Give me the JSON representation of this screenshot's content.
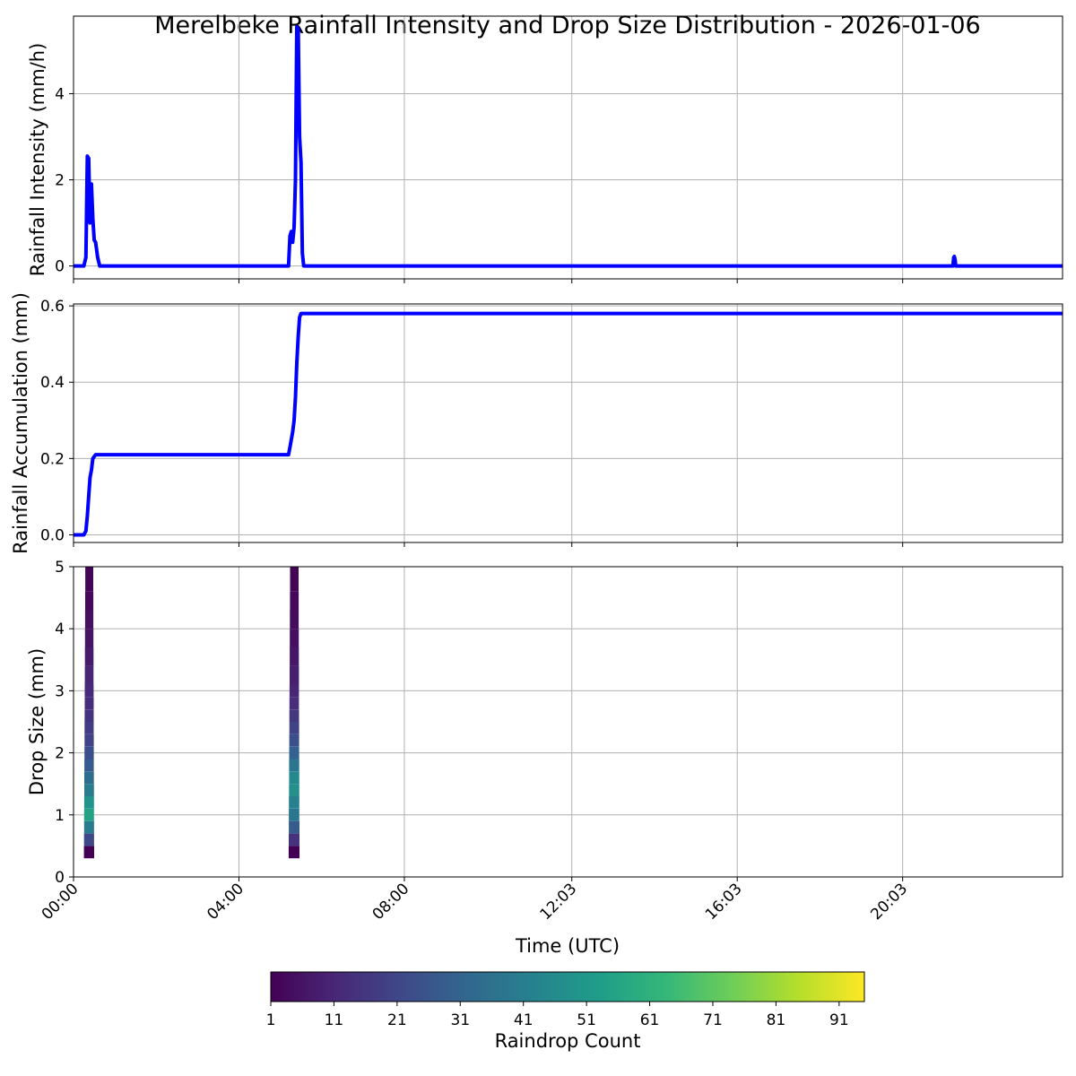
{
  "title": "Merelbeke Rainfall Intensity and Drop Size Distribution - 2026-01-06",
  "colors": {
    "line": "#0000ff",
    "grid": "#b0b0b0",
    "axis": "#000000",
    "viridis": [
      "#440154",
      "#482878",
      "#3e4989",
      "#31688e",
      "#26828e",
      "#1f9e89",
      "#35b779",
      "#6ece58",
      "#b5de2b",
      "#fde725"
    ]
  },
  "chart_data": [
    {
      "id": "intensity",
      "type": "line",
      "ylabel": "Rainfall Intensity (mm/h)",
      "xlim": [
        "00:00",
        "23:55"
      ],
      "ylim": [
        -0.3,
        5.8
      ],
      "yticks": [
        0,
        2,
        4
      ],
      "grid": true,
      "series": [
        {
          "x": [
            "00:00",
            "00:15",
            "00:18",
            "00:20",
            "00:22",
            "00:24",
            "00:26",
            "00:28",
            "00:30",
            "00:32",
            "00:35",
            "00:38",
            "00:42",
            "05:00",
            "05:12",
            "05:14",
            "05:16",
            "05:18",
            "05:20",
            "05:22",
            "05:24",
            "05:26",
            "05:28",
            "05:30",
            "05:32",
            "05:34",
            "05:38",
            "21:15",
            "21:16",
            "21:17",
            "21:18",
            "21:19",
            "21:20",
            "23:55"
          ],
          "y": [
            0,
            0,
            0.2,
            2.55,
            2.5,
            1.0,
            1.9,
            1.1,
            0.6,
            0.55,
            0.2,
            0,
            0,
            0,
            0,
            0.7,
            0.8,
            0.55,
            0.9,
            2.0,
            5.55,
            5.5,
            3.0,
            2.4,
            0.3,
            0,
            0,
            0,
            0,
            0.2,
            0.22,
            0.15,
            0,
            0
          ]
        }
      ]
    },
    {
      "id": "accumulation",
      "type": "line",
      "ylabel": "Rainfall Accumulation (mm)",
      "xlim": [
        "00:00",
        "23:55"
      ],
      "ylim": [
        -0.02,
        0.605
      ],
      "yticks": [
        0.0,
        0.2,
        0.4,
        0.6
      ],
      "ytick_labels": [
        "0.0",
        "0.2",
        "0.4",
        "0.6"
      ],
      "grid": true,
      "series": [
        {
          "x": [
            "00:00",
            "00:15",
            "00:18",
            "00:20",
            "00:22",
            "00:24",
            "00:26",
            "00:28",
            "00:32",
            "05:12",
            "05:14",
            "05:16",
            "05:18",
            "05:20",
            "05:22",
            "05:24",
            "05:26",
            "05:28",
            "05:30",
            "23:55"
          ],
          "y": [
            0,
            0,
            0.01,
            0.05,
            0.1,
            0.15,
            0.17,
            0.2,
            0.21,
            0.21,
            0.23,
            0.25,
            0.27,
            0.3,
            0.36,
            0.45,
            0.52,
            0.57,
            0.58,
            0.58
          ]
        }
      ]
    },
    {
      "id": "dsd",
      "type": "heatmap",
      "ylabel": "Drop Size (mm)",
      "xlabel": "Time (UTC)",
      "xlim": [
        "00:00",
        "23:55"
      ],
      "ylim": [
        0,
        5
      ],
      "yticks": [
        0,
        1,
        2,
        3,
        4,
        5
      ],
      "xticks": [
        "00:00",
        "04:00",
        "08:00",
        "12:03",
        "16:03",
        "20:03"
      ],
      "grid": true,
      "events": [
        {
          "start": "00:15",
          "end": "00:30",
          "profile": [
            [
              0.3,
              1
            ],
            [
              0.5,
              22
            ],
            [
              0.7,
              40
            ],
            [
              0.9,
              55
            ],
            [
              1.1,
              50
            ],
            [
              1.3,
              40
            ],
            [
              1.5,
              34
            ],
            [
              1.7,
              28
            ],
            [
              1.9,
              24
            ],
            [
              2.1,
              20
            ],
            [
              2.3,
              18
            ],
            [
              2.5,
              15
            ],
            [
              2.7,
              13
            ],
            [
              2.9,
              12
            ],
            [
              3.1,
              11
            ],
            [
              3.4,
              8
            ],
            [
              3.7,
              6
            ],
            [
              4.0,
              5
            ],
            [
              4.3,
              3
            ],
            [
              4.6,
              2
            ],
            [
              5.0,
              1
            ]
          ]
        },
        {
          "start": "05:12",
          "end": "05:28",
          "profile": [
            [
              0.3,
              1
            ],
            [
              0.5,
              15
            ],
            [
              0.7,
              28
            ],
            [
              0.9,
              38
            ],
            [
              1.1,
              42
            ],
            [
              1.3,
              48
            ],
            [
              1.5,
              45
            ],
            [
              1.7,
              38
            ],
            [
              1.9,
              30
            ],
            [
              2.1,
              24
            ],
            [
              2.3,
              20
            ],
            [
              2.5,
              16
            ],
            [
              2.7,
              13
            ],
            [
              2.9,
              11
            ],
            [
              3.1,
              9
            ],
            [
              3.4,
              7
            ],
            [
              3.7,
              5
            ],
            [
              4.0,
              4
            ],
            [
              4.3,
              3
            ],
            [
              4.6,
              2
            ],
            [
              5.0,
              1
            ]
          ]
        }
      ]
    }
  ],
  "colorbar": {
    "label": "Raindrop Count",
    "range": [
      1,
      95
    ],
    "ticks": [
      1,
      11,
      21,
      31,
      41,
      51,
      61,
      71,
      81,
      91
    ]
  }
}
